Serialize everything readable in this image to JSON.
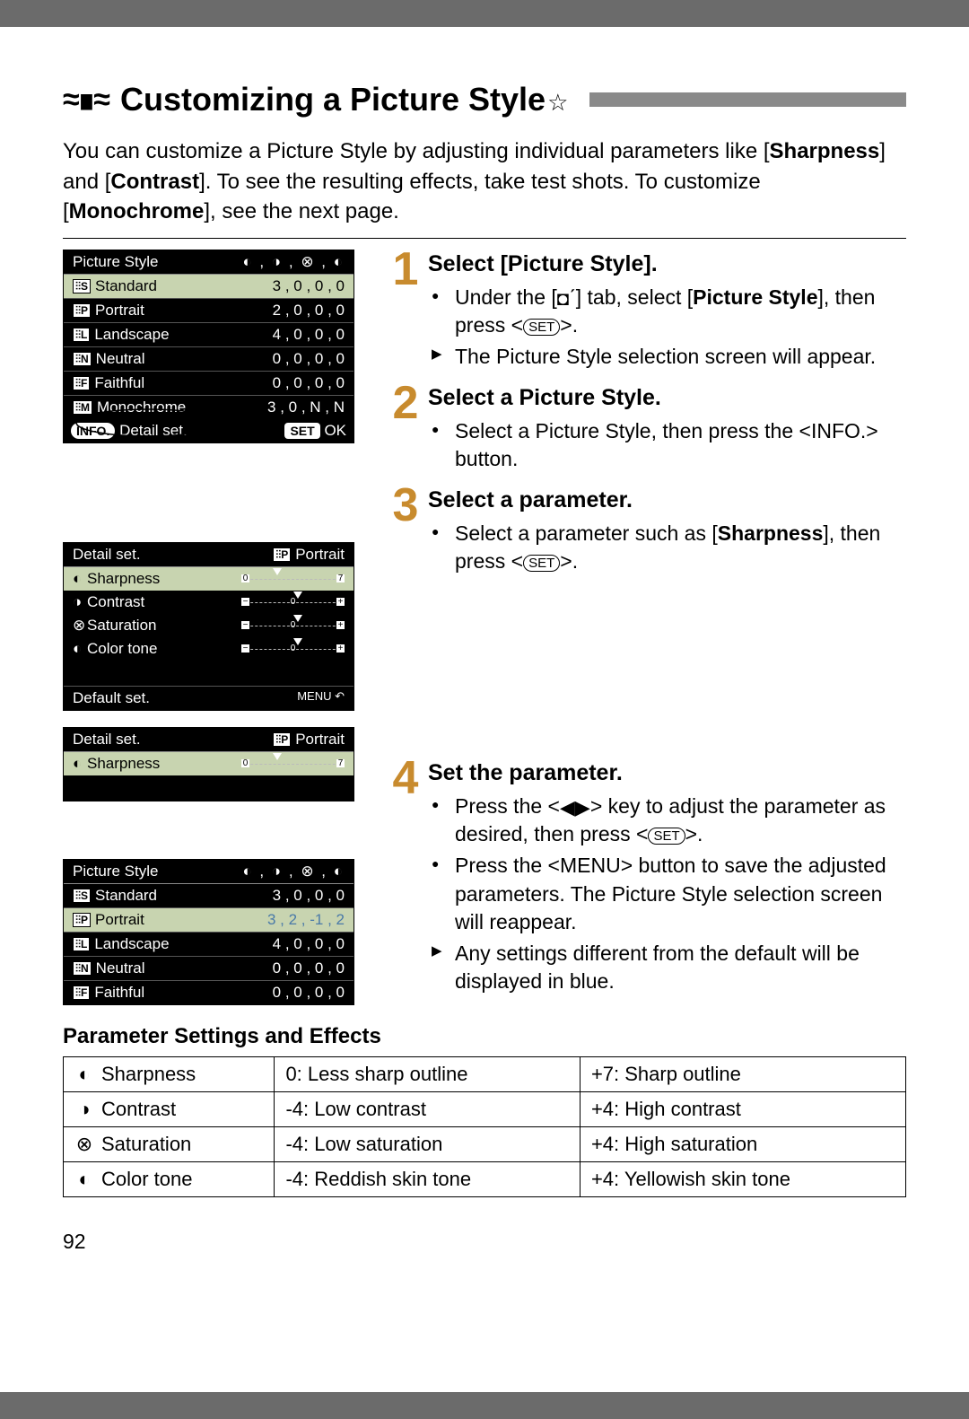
{
  "title": {
    "icon": "≈∎≈",
    "text": "Customizing a Picture Style",
    "star": "☆"
  },
  "intro_html": "You can customize a Picture Style by adjusting individual parameters like [<b>Sharpness</b>] and [<b>Contrast</b>]. To see the resulting effects, take test shots. To customize [<b>Monochrome</b>], see the next page.",
  "screen1": {
    "header_left": "Picture Style",
    "header_right": "◐ , ◑ , ⊗ , ◐",
    "rows": [
      {
        "badge": "⫶⫶S",
        "label": "Standard",
        "val": "3 , 0 , 0 , 0",
        "hl": true
      },
      {
        "badge": "⫶⫶P",
        "label": "Portrait",
        "val": "2 , 0 , 0 , 0"
      },
      {
        "badge": "⫶⫶L",
        "label": "Landscape",
        "val": "4 , 0 , 0 , 0"
      },
      {
        "badge": "⫶⫶N",
        "label": "Neutral",
        "val": "0 , 0 , 0 , 0"
      },
      {
        "badge": "⫶⫶F",
        "label": "Faithful",
        "val": "0 , 0 , 0 , 0"
      },
      {
        "badge": "⫶⫶M",
        "label": "Monochrome",
        "val": "3 , 0 , N , N"
      }
    ],
    "footer_left": "INFO.",
    "footer_mid": "Detail set.",
    "footer_right_set": "SET",
    "footer_right_ok": "OK"
  },
  "screen2": {
    "header_left": "Detail set.",
    "header_right_badge": "⫶⫶P",
    "header_right_label": "Portrait",
    "rows": [
      {
        "icon": "◐",
        "label": "Sharpness",
        "slider": {
          "l": "0",
          "r": "7",
          "ptr": 30
        },
        "hl": true
      },
      {
        "icon": "◑",
        "label": "Contrast",
        "slider": {
          "l": "−",
          "r": "+",
          "c": "0",
          "ptr": 50
        }
      },
      {
        "icon": "⊗",
        "label": "Saturation",
        "slider": {
          "l": "−",
          "r": "+",
          "c": "0",
          "ptr": 50
        }
      },
      {
        "icon": "◐",
        "label": "Color tone",
        "slider": {
          "l": "−",
          "r": "+",
          "c": "0",
          "ptr": 50
        }
      }
    ],
    "footer_left": "Default set.",
    "footer_right": "MENU ↶"
  },
  "screen3": {
    "header_left": "Detail set.",
    "header_right_badge": "⫶⫶P",
    "header_right_label": "Portrait",
    "row": {
      "icon": "◐",
      "label": "Sharpness",
      "slider": {
        "l": "0",
        "r": "7",
        "ptr": 30
      },
      "hl": true
    }
  },
  "screen4": {
    "header_left": "Picture Style",
    "header_right": "◐ , ◑ , ⊗ , ◐",
    "rows": [
      {
        "badge": "⫶⫶S",
        "label": "Standard",
        "val": "3 , 0 , 0 , 0"
      },
      {
        "badge": "⫶⫶P",
        "label": "Portrait",
        "val": "3 , 2 , -1 , 2",
        "hl": true,
        "blue": true
      },
      {
        "badge": "⫶⫶L",
        "label": "Landscape",
        "val": "4 , 0 , 0 , 0"
      },
      {
        "badge": "⫶⫶N",
        "label": "Neutral",
        "val": "0 , 0 , 0 , 0"
      },
      {
        "badge": "⫶⫶F",
        "label": "Faithful",
        "val": "0 , 0 , 0 , 0"
      }
    ]
  },
  "steps": [
    {
      "num": "1",
      "title": "Select [Picture Style].",
      "items": [
        {
          "type": "dot",
          "html": "Under the [<span class='inline-sym'>◘</span>ˊ] tab, select [<b>Picture Style</b>], then press &lt;<span class='inline-icon'>SET</span>&gt;."
        },
        {
          "type": "tri",
          "html": "The Picture Style selection screen will appear."
        }
      ]
    },
    {
      "num": "2",
      "title": "Select a Picture Style.",
      "items": [
        {
          "type": "dot",
          "html": "Select a Picture Style, then press the &lt;INFO.&gt; button."
        }
      ]
    },
    {
      "num": "3",
      "title": "Select a parameter.",
      "items": [
        {
          "type": "dot",
          "html": "Select a parameter such as [<b>Sharpness</b>], then press &lt;<span class='inline-icon'>SET</span>&gt;."
        }
      ]
    },
    {
      "num": "4",
      "title": "Set the parameter.",
      "items": [
        {
          "type": "dot",
          "html": "Press the &lt;<span class='inline-sym'>◀▶</span>&gt; key to adjust the parameter as desired, then press &lt;<span class='inline-icon'>SET</span>&gt;."
        },
        {
          "type": "dot",
          "html": "Press the &lt;MENU&gt; button to save the adjusted parameters. The Picture Style selection screen will reappear."
        },
        {
          "type": "tri",
          "html": "Any settings different from the default will be displayed in blue."
        }
      ]
    }
  ],
  "param_heading": "Parameter Settings and Effects",
  "param_table": [
    {
      "icon": "◐",
      "name": "Sharpness",
      "low": "0: Less sharp outline",
      "high": "+7: Sharp outline"
    },
    {
      "icon": "◑",
      "name": "Contrast",
      "low": "-4: Low contrast",
      "high": "+4: High contrast"
    },
    {
      "icon": "⊗",
      "name": "Saturation",
      "low": "-4: Low saturation",
      "high": "+4: High saturation"
    },
    {
      "icon": "◐",
      "name": "Color tone",
      "low": "-4: Reddish skin tone",
      "high": "+4: Yellowish skin tone"
    }
  ],
  "page_number": "92"
}
